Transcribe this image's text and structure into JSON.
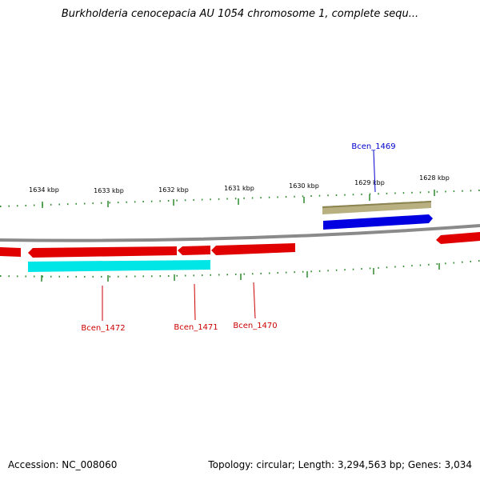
{
  "title": "Burkholderia cenocepacia AU 1054 chromosome 1, complete sequ...",
  "footer": {
    "accession": "Accession: NC_008060",
    "summary": "Topology: circular; Length: 3,294,563 bp; Genes: 3,034"
  },
  "colors": {
    "backbone": "#8a8a8a",
    "tick": "#2e8b2e",
    "forward_gene": "#0000e0",
    "reverse_gene": "#e00000",
    "cds_reverse": "#00e5e5",
    "cds_forward": "#b8b080",
    "label_reverse": "#cc0000",
    "label_forward": "#0000cc"
  },
  "scale": {
    "ticks": [
      {
        "label": "1634 kbp"
      },
      {
        "label": "1633 kbp"
      },
      {
        "label": "1632 kbp"
      },
      {
        "label": "1631 kbp"
      },
      {
        "label": "1630 kbp"
      },
      {
        "label": "1629 kbp"
      },
      {
        "label": "1628 kbp"
      }
    ]
  },
  "genes": [
    {
      "name": "Bcen_1469",
      "strand": "forward"
    },
    {
      "name": "Bcen_1470",
      "strand": "reverse"
    },
    {
      "name": "Bcen_1471",
      "strand": "reverse"
    },
    {
      "name": "Bcen_1472",
      "strand": "reverse"
    }
  ]
}
